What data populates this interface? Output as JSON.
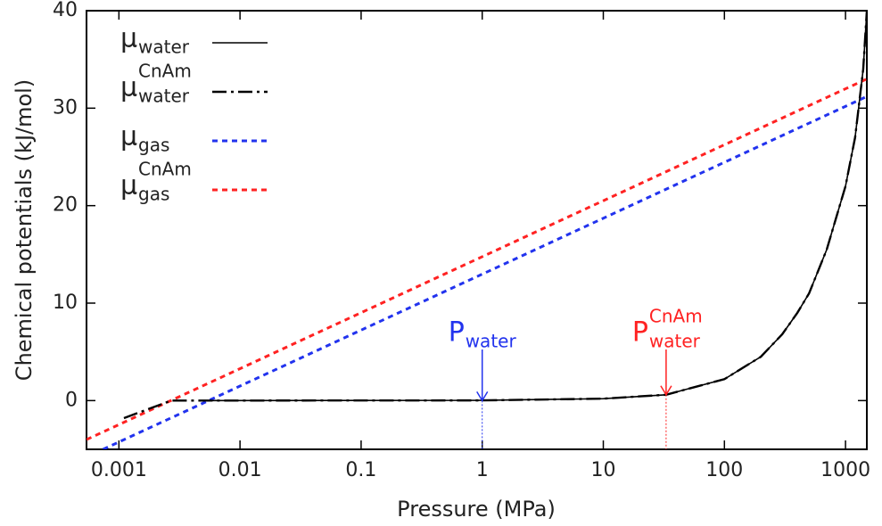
{
  "chart_data": {
    "type": "line",
    "xlabel": "Pressure (MPa)",
    "ylabel": "Chemical potentials  (kJ/mol)",
    "xscale": "log",
    "xlim": [
      0.00054,
      1500
    ],
    "ylim": [
      -5,
      40
    ],
    "xticks": [
      0.001,
      0.01,
      0.1,
      1,
      10,
      100,
      1000
    ],
    "yticks": [
      0,
      10,
      20,
      30,
      40
    ],
    "legend": "upper left",
    "series": [
      {
        "name": "μ",
        "sub": "water",
        "color": "#000000",
        "dash": "solid",
        "x": [
          0.0055,
          1,
          10,
          33,
          100,
          200,
          300,
          400,
          500,
          700,
          1000,
          1200,
          1400,
          1500
        ],
        "values": [
          0,
          0.02,
          0.2,
          0.6,
          2.2,
          4.5,
          6.8,
          9,
          11,
          15.5,
          22,
          27,
          34,
          40
        ]
      },
      {
        "name": "μ",
        "sub": "water",
        "sup": "CnAm",
        "color": "#000000",
        "dash": "dashdot",
        "x": [
          0.0011,
          0.0027,
          1,
          10,
          33,
          100,
          200,
          300,
          400,
          500,
          700,
          1000,
          1200,
          1400,
          1500
        ],
        "values": [
          -1.8,
          0,
          0.02,
          0.2,
          0.6,
          2.2,
          4.5,
          6.8,
          9,
          11,
          15.5,
          22,
          27,
          34,
          40
        ]
      },
      {
        "name": "μ",
        "sub": "gas",
        "color": "#2233ee",
        "dash": "dotted",
        "x": [
          0.00074,
          1500
        ],
        "values": [
          -5,
          31.2
        ]
      },
      {
        "name": "μ",
        "sub": "gas",
        "sup": "CnAm",
        "color": "#ff2222",
        "dash": "dotted",
        "x": [
          0.00054,
          1500
        ],
        "values": [
          -4,
          33
        ]
      }
    ],
    "annotations": [
      {
        "text": "P",
        "sub": "water",
        "x": 1,
        "y": 0,
        "color": "#2233ee"
      },
      {
        "text": "P",
        "sub": "water",
        "sup": "CnAm",
        "x": 33,
        "y": 0.6,
        "color": "#ff2222"
      }
    ]
  }
}
